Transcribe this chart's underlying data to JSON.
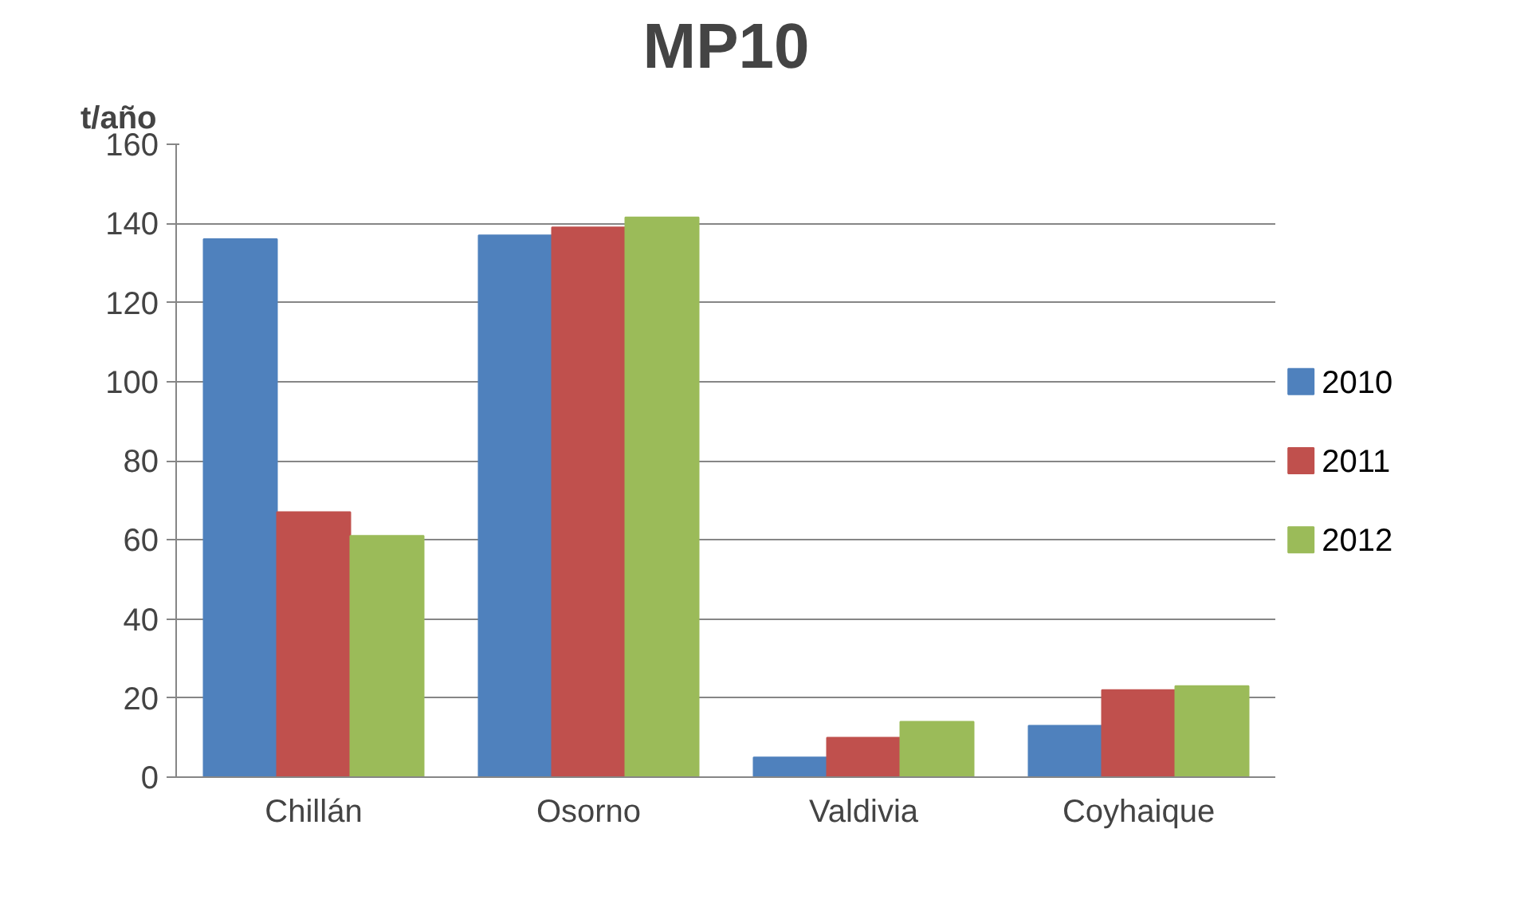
{
  "chart_data": {
    "type": "bar",
    "title": "MP10",
    "ylabel": "t/año",
    "categories": [
      "Chillán",
      "Osorno",
      "Valdivia",
      "Coyhaique"
    ],
    "series": [
      {
        "name": "2010",
        "color": "#4f81bd",
        "values": [
          136,
          137,
          5,
          13
        ]
      },
      {
        "name": "2011",
        "color": "#c0504d",
        "values": [
          67,
          139,
          10,
          22
        ]
      },
      {
        "name": "2012",
        "color": "#9bbb59",
        "values": [
          61,
          141.5,
          14,
          23
        ]
      }
    ],
    "ylim": [
      0,
      160
    ],
    "yticks": [
      0,
      20,
      40,
      60,
      80,
      100,
      120,
      140,
      160
    ],
    "grid": "y",
    "legend": "right"
  }
}
